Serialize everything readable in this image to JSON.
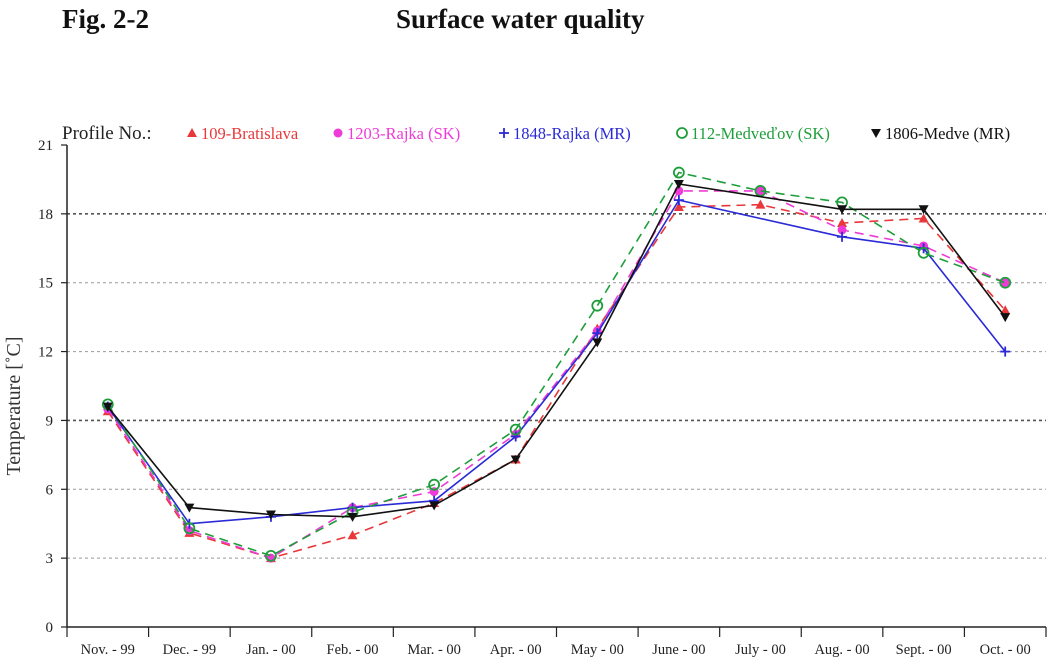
{
  "figure": {
    "label": "Fig. 2-2",
    "title": "Surface water quality"
  },
  "chart_data": {
    "type": "line",
    "legend_prefix": "Profile No.:",
    "ylabel": "Temperature [˚C]",
    "xlabel": "",
    "ylim": [
      0,
      21
    ],
    "yticks": [
      0,
      3,
      6,
      9,
      12,
      15,
      18,
      21
    ],
    "grid": "horizontal dashed",
    "legend_position": "top",
    "categories": [
      "Nov. - 99",
      "Dec. - 99",
      "Jan. - 00",
      "Feb. - 00",
      "Mar. - 00",
      "Apr. - 00",
      "May - 00",
      "June - 00",
      "July - 00",
      "Aug. - 00",
      "Sept. - 00",
      "Oct. - 00"
    ],
    "series": [
      {
        "name": "109-Bratislava",
        "color": "#e8383a",
        "dash": "dashed",
        "marker": "triangle-up",
        "values": [
          9.4,
          4.1,
          3.0,
          4.0,
          5.4,
          7.3,
          13.0,
          18.3,
          18.4,
          17.6,
          17.8,
          13.8
        ]
      },
      {
        "name": "1203-Rajka (SK)",
        "color": "#ee3bd8",
        "dash": "dashed",
        "marker": "circle-filled",
        "values": [
          9.5,
          4.2,
          3.0,
          5.2,
          5.9,
          8.4,
          12.9,
          19.0,
          19.0,
          17.3,
          16.6,
          15.0
        ]
      },
      {
        "name": "1848-Rajka (MR)",
        "color": "#2a2ad6",
        "dash": "solid",
        "marker": "plus",
        "values": [
          9.6,
          4.5,
          4.8,
          5.2,
          5.5,
          8.3,
          12.8,
          18.6,
          null,
          17.0,
          16.5,
          12.0
        ]
      },
      {
        "name": "112-Medveďov (SK)",
        "color": "#1e9e3a",
        "dash": "dashed",
        "marker": "circle-open",
        "values": [
          9.7,
          4.3,
          3.1,
          5.0,
          6.2,
          8.6,
          14.0,
          19.8,
          19.0,
          18.5,
          16.3,
          15.0
        ]
      },
      {
        "name": "1806-Medve (MR)",
        "color": "#111111",
        "dash": "solid",
        "marker": "triangle-down",
        "values": [
          9.6,
          5.2,
          4.9,
          4.8,
          5.3,
          7.3,
          12.4,
          19.3,
          null,
          18.2,
          18.2,
          13.5
        ]
      }
    ]
  }
}
